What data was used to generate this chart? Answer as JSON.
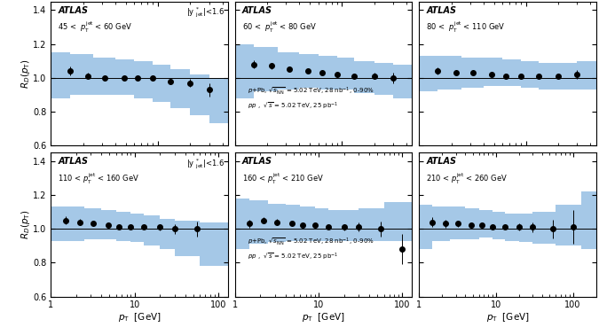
{
  "panels": [
    {
      "jet_label": "45 <  $p_{\\mathrm{T}}^{\\mathrm{jet}}$ < 60 GeV",
      "show_yjet": true,
      "row": 0,
      "col": 0,
      "xmin": 1,
      "xmax": 45,
      "data_x": [
        1.5,
        2.2,
        3.2,
        4.8,
        6.5,
        9.0,
        13.0,
        20.0,
        30.0
      ],
      "data_y": [
        1.04,
        1.01,
        1.0,
        1.0,
        1.0,
        1.0,
        0.98,
        0.97,
        0.93
      ],
      "data_yerr": [
        0.025,
        0.018,
        0.016,
        0.013,
        0.012,
        0.012,
        0.016,
        0.022,
        0.04
      ],
      "band_x": [
        1.0,
        1.5,
        2.5,
        4.0,
        6.0,
        9.0,
        13.0,
        20.0,
        30.0,
        45.0
      ],
      "band_y_lo": [
        0.88,
        0.9,
        0.9,
        0.9,
        0.88,
        0.86,
        0.82,
        0.78,
        0.73,
        0.7
      ],
      "band_y_hi": [
        1.15,
        1.14,
        1.12,
        1.11,
        1.1,
        1.08,
        1.05,
        1.02,
        1.0,
        0.97
      ]
    },
    {
      "jet_label": "60 <  $p_{\\mathrm{T}}^{\\mathrm{jet}}$ < 80 GeV",
      "show_yjet": false,
      "row": 0,
      "col": 1,
      "xmin": 1,
      "xmax": 45,
      "data_x": [
        1.5,
        2.2,
        3.2,
        4.8,
        6.5,
        9.0,
        13.0,
        20.0,
        30.0
      ],
      "data_y": [
        1.08,
        1.07,
        1.05,
        1.04,
        1.03,
        1.02,
        1.01,
        1.01,
        1.0
      ],
      "data_yerr": [
        0.025,
        0.018,
        0.016,
        0.013,
        0.012,
        0.012,
        0.014,
        0.018,
        0.03
      ],
      "band_x": [
        1.0,
        1.5,
        2.5,
        4.0,
        6.0,
        9.0,
        13.0,
        20.0,
        30.0,
        45.0
      ],
      "band_y_lo": [
        0.88,
        0.92,
        0.93,
        0.94,
        0.93,
        0.93,
        0.91,
        0.9,
        0.88,
        0.86
      ],
      "band_y_hi": [
        1.2,
        1.18,
        1.15,
        1.14,
        1.13,
        1.12,
        1.1,
        1.09,
        1.08,
        1.08
      ],
      "show_legend": true
    },
    {
      "jet_label": "80 <  $p_{\\mathrm{T}}^{\\mathrm{jet}}$ < 110 GeV",
      "show_yjet": false,
      "row": 0,
      "col": 2,
      "xmin": 1,
      "xmax": 45,
      "data_x": [
        1.5,
        2.2,
        3.2,
        4.8,
        6.5,
        9.0,
        13.0,
        20.0,
        30.0
      ],
      "data_y": [
        1.04,
        1.03,
        1.03,
        1.02,
        1.01,
        1.01,
        1.01,
        1.01,
        1.02
      ],
      "data_yerr": [
        0.022,
        0.016,
        0.014,
        0.012,
        0.01,
        0.01,
        0.012,
        0.016,
        0.026
      ],
      "band_x": [
        1.0,
        1.5,
        2.5,
        4.0,
        6.0,
        9.0,
        13.0,
        20.0,
        30.0,
        45.0
      ],
      "band_y_lo": [
        0.92,
        0.93,
        0.94,
        0.95,
        0.95,
        0.94,
        0.93,
        0.93,
        0.93,
        0.95
      ],
      "band_y_hi": [
        1.13,
        1.13,
        1.12,
        1.12,
        1.11,
        1.1,
        1.09,
        1.09,
        1.1,
        1.18
      ]
    },
    {
      "jet_label": "110 < $p_{\\mathrm{T}}^{\\mathrm{jet}}$ < 160 GeV",
      "show_yjet": true,
      "row": 1,
      "col": 0,
      "xmin": 1,
      "xmax": 130,
      "data_x": [
        1.5,
        2.2,
        3.2,
        4.8,
        6.5,
        9.0,
        13.0,
        20.0,
        30.0,
        55.0
      ],
      "data_y": [
        1.05,
        1.04,
        1.03,
        1.02,
        1.01,
        1.01,
        1.01,
        1.01,
        1.0,
        1.0
      ],
      "data_yerr": [
        0.025,
        0.018,
        0.016,
        0.013,
        0.012,
        0.012,
        0.014,
        0.018,
        0.028,
        0.045
      ],
      "band_x": [
        1.0,
        1.5,
        2.5,
        4.0,
        6.0,
        9.0,
        13.0,
        20.0,
        30.0,
        60.0,
        130.0
      ],
      "band_y_lo": [
        0.93,
        0.93,
        0.94,
        0.94,
        0.93,
        0.92,
        0.9,
        0.88,
        0.84,
        0.78,
        0.73
      ],
      "band_y_hi": [
        1.13,
        1.13,
        1.12,
        1.11,
        1.1,
        1.09,
        1.08,
        1.06,
        1.05,
        1.04,
        1.02
      ]
    },
    {
      "jet_label": "160 < $p_{\\mathrm{T}}^{\\mathrm{jet}}$ < 210 GeV",
      "show_yjet": false,
      "row": 1,
      "col": 1,
      "xmin": 1,
      "xmax": 130,
      "data_x": [
        1.5,
        2.2,
        3.2,
        4.8,
        6.5,
        9.0,
        13.0,
        20.0,
        30.0,
        55.0,
        100.0
      ],
      "data_y": [
        1.03,
        1.05,
        1.04,
        1.03,
        1.02,
        1.02,
        1.01,
        1.01,
        1.01,
        1.0,
        0.88
      ],
      "data_yerr": [
        0.022,
        0.018,
        0.016,
        0.013,
        0.011,
        0.011,
        0.013,
        0.017,
        0.026,
        0.045,
        0.09
      ],
      "band_x": [
        1.0,
        1.5,
        2.5,
        4.0,
        6.0,
        9.0,
        13.0,
        20.0,
        30.0,
        60.0,
        130.0
      ],
      "band_y_lo": [
        0.88,
        0.91,
        0.92,
        0.93,
        0.93,
        0.93,
        0.93,
        0.93,
        0.93,
        0.93,
        0.65
      ],
      "band_y_hi": [
        1.18,
        1.17,
        1.15,
        1.14,
        1.13,
        1.12,
        1.11,
        1.11,
        1.12,
        1.16,
        1.28
      ],
      "show_legend": true
    },
    {
      "jet_label": "210 < $p_{\\mathrm{T}}^{\\mathrm{jet}}$ < 260 GeV",
      "show_yjet": false,
      "row": 1,
      "col": 2,
      "xmin": 1,
      "xmax": 200,
      "data_x": [
        1.5,
        2.2,
        3.2,
        4.8,
        6.5,
        9.0,
        13.0,
        20.0,
        30.0,
        55.0,
        100.0
      ],
      "data_y": [
        1.04,
        1.03,
        1.03,
        1.02,
        1.02,
        1.01,
        1.01,
        1.01,
        1.01,
        1.0,
        1.01
      ],
      "data_yerr": [
        0.03,
        0.022,
        0.018,
        0.015,
        0.013,
        0.013,
        0.016,
        0.02,
        0.03,
        0.055,
        0.1
      ],
      "band_x": [
        1.0,
        1.5,
        2.5,
        4.0,
        6.0,
        9.0,
        13.0,
        20.0,
        30.0,
        60.0,
        130.0,
        200.0
      ],
      "band_y_lo": [
        0.88,
        0.93,
        0.94,
        0.94,
        0.95,
        0.94,
        0.93,
        0.92,
        0.91,
        0.9,
        0.88,
        0.88
      ],
      "band_y_hi": [
        1.14,
        1.13,
        1.13,
        1.12,
        1.11,
        1.1,
        1.09,
        1.09,
        1.1,
        1.14,
        1.22,
        1.32
      ]
    }
  ],
  "atlas_label": "ATLAS",
  "yjet_label": "|y $^{*}_{\\mathrm{jet}}$|<1.6",
  "ppb_label": "$p$+Pb, $\\sqrt{s_{\\mathrm{NN}}}$ = 5.02 TeV, 28 nb$^{-1}$, 0-90%",
  "pp_label": "$pp$ ,  $\\sqrt{s}$ = 5.02 TeV, 25 pb$^{-1}$",
  "ylabel": "$R_{D}(p_{\\mathrm{T}})$",
  "xlabel_top": "$p_{\\mathrm{T}}$ [GeV]",
  "xlabel_bot": "$p_{\\mathrm{T}}$  [GeV]",
  "ylim": [
    0.6,
    1.45
  ],
  "yticks": [
    0.6,
    0.8,
    1.0,
    1.2,
    1.4
  ],
  "band_color": "#5B9BD5",
  "band_alpha": 0.55,
  "line_color": "black",
  "marker_color": "black",
  "marker_size": 4.0
}
